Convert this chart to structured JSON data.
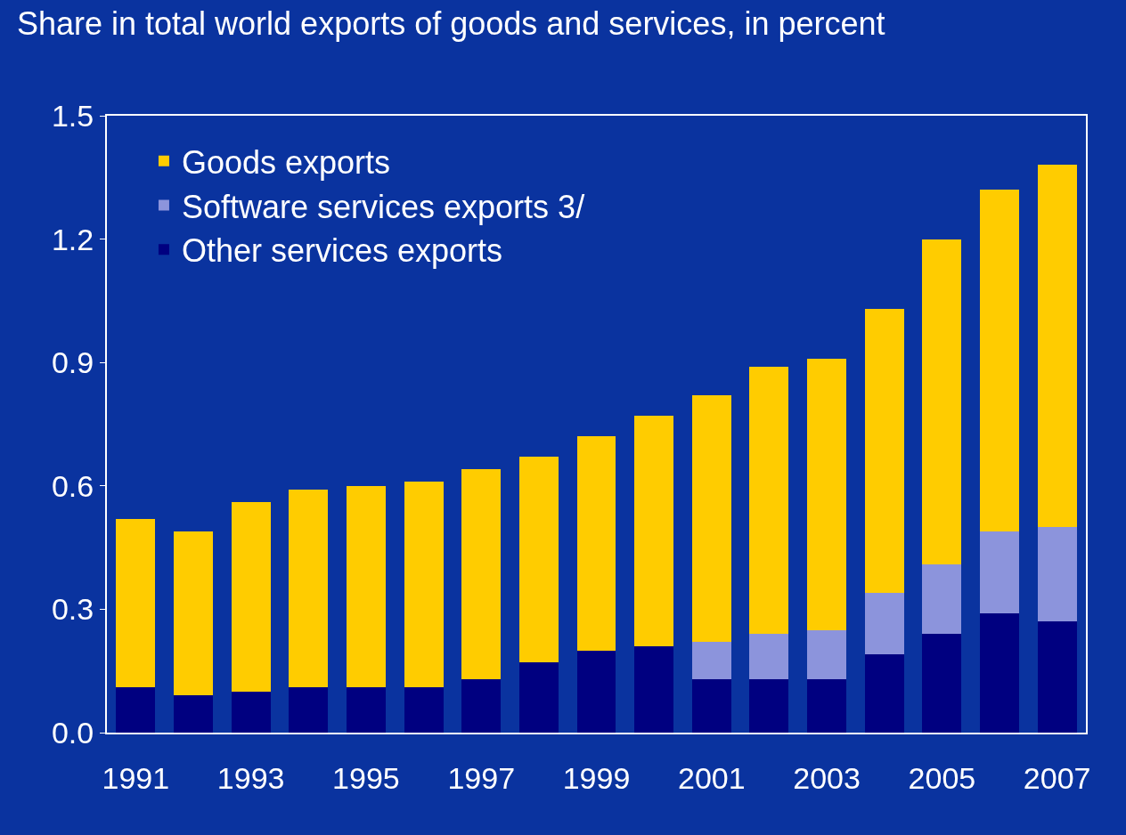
{
  "chart_data": {
    "type": "bar",
    "stacked": true,
    "title": "Share in total world exports of goods and services, in percent",
    "categories": [
      "1991",
      null,
      "1993",
      null,
      "1995",
      null,
      "1997",
      null,
      "1999",
      null,
      "2001",
      null,
      "2003",
      null,
      "2005",
      null,
      "2007"
    ],
    "series": [
      {
        "name": "Other services exports",
        "color": "#000080",
        "values": [
          0.11,
          0.09,
          0.1,
          0.11,
          0.11,
          0.11,
          0.13,
          0.17,
          0.2,
          0.21,
          0.13,
          0.13,
          0.13,
          0.19,
          0.24,
          0.29,
          0.27
        ]
      },
      {
        "name": "Software services exports 3/",
        "color": "#8c94dc",
        "values": [
          null,
          null,
          null,
          null,
          null,
          null,
          null,
          null,
          null,
          null,
          0.09,
          0.11,
          0.12,
          0.15,
          0.17,
          0.2,
          0.23
        ]
      },
      {
        "name": "Goods exports",
        "color": "#ffcc00",
        "values": [
          0.41,
          0.4,
          0.46,
          0.48,
          0.49,
          0.5,
          0.51,
          0.5,
          0.52,
          0.56,
          0.6,
          0.65,
          0.66,
          0.69,
          0.79,
          0.83,
          0.88
        ]
      }
    ],
    "ylim": [
      0,
      1.5
    ],
    "yticks": [
      {
        "value": 0,
        "label": "0.0"
      },
      {
        "value": 0.3,
        "label": "0.3"
      },
      {
        "value": 0.6,
        "label": "0.6"
      },
      {
        "value": 0.9,
        "label": "0.9"
      },
      {
        "value": 1.2,
        "label": "1.2"
      },
      {
        "value": 1.5,
        "label": "1.5"
      }
    ],
    "grid": false,
    "legend": "top left"
  }
}
